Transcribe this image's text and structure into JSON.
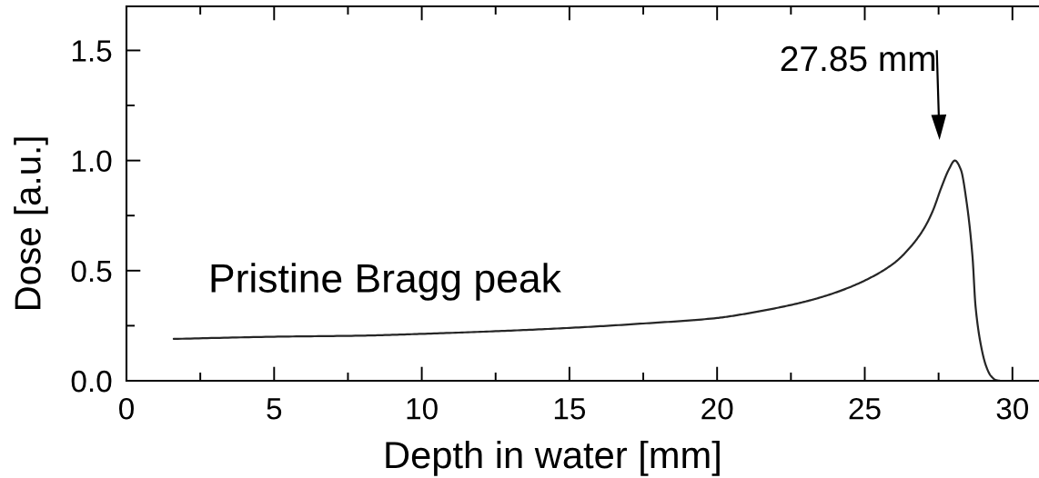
{
  "chart_data": {
    "type": "line",
    "xlabel": "Depth in water [mm]",
    "ylabel": "Dose [a.u.]",
    "annotations": [
      "Pristine Bragg peak",
      "27.85 mm"
    ],
    "series": [
      {
        "color": "#262626",
        "x": [
          1.6,
          5,
          8,
          10,
          12.5,
          15,
          17.5,
          20,
          21,
          22,
          23,
          24,
          25,
          26,
          26.5,
          27,
          27.3,
          27.6,
          27.85,
          28.05,
          28.25,
          28.45,
          28.65,
          28.75,
          28.95,
          29.1,
          29.26,
          29.45,
          29.6,
          30.1
        ],
        "values": [
          0.19,
          0.2,
          0.205,
          0.213,
          0.225,
          0.24,
          0.26,
          0.285,
          0.305,
          0.33,
          0.36,
          0.4,
          0.455,
          0.535,
          0.6,
          0.69,
          0.77,
          0.88,
          0.96,
          1.0,
          0.96,
          0.81,
          0.56,
          0.34,
          0.15,
          0.07,
          0.024,
          0.003,
          0,
          0
        ]
      }
    ],
    "xlim": [
      0,
      30.9
    ],
    "ylim": [
      0,
      1.7
    ],
    "xticks": [
      0,
      {
        "value": 2.5,
        "label": null
      },
      5,
      {
        "value": 7.5,
        "label": null
      },
      10,
      {
        "value": 12.5,
        "label": null
      },
      15,
      {
        "value": 17.5,
        "label": null
      },
      20,
      {
        "value": 22.5,
        "label": null
      },
      25,
      {
        "value": 27.5,
        "label": null
      },
      30
    ],
    "yticks": [
      {
        "value": 0,
        "label": "0.0"
      },
      {
        "value": 0.25,
        "label": null
      },
      0.5,
      {
        "value": 0.75,
        "label": null
      },
      {
        "value": 1,
        "label": "1.0"
      },
      {
        "value": 1.25,
        "label": null
      },
      1.5
    ],
    "grid": false,
    "marker": "none",
    "line_style": "solid"
  }
}
